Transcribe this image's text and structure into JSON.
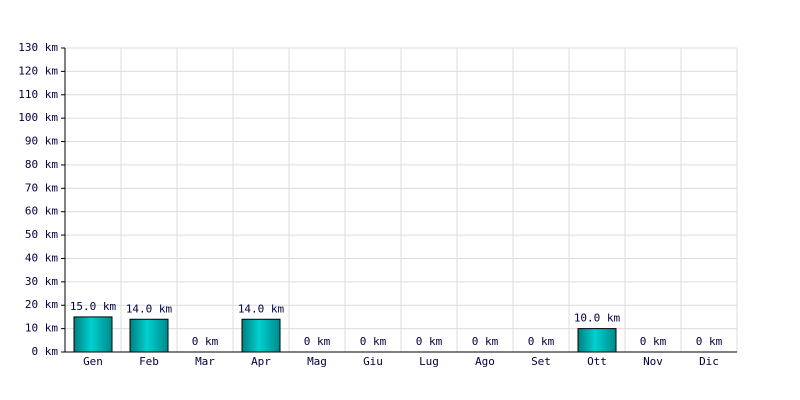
{
  "chart_data": {
    "type": "bar",
    "categories": [
      "Gen",
      "Feb",
      "Mar",
      "Apr",
      "Mag",
      "Giu",
      "Lug",
      "Ago",
      "Set",
      "Ott",
      "Nov",
      "Dic"
    ],
    "values": [
      15,
      14,
      0,
      14,
      0,
      0,
      0,
      0,
      0,
      10,
      0,
      0
    ],
    "value_labels": [
      "15.0 km",
      "14.0 km",
      "0 km",
      "14.0 km",
      "0 km",
      "0 km",
      "0 km",
      "0 km",
      "0 km",
      "10.0 km",
      "0 km",
      "0 km"
    ],
    "color": "#00d0d0",
    "ylim": [
      0,
      130
    ],
    "yticks": [
      {
        "value": 0,
        "label": "0 km"
      },
      {
        "value": 10,
        "label": "10 km"
      },
      {
        "value": 20,
        "label": "20 km"
      },
      {
        "value": 30,
        "label": "30 km"
      },
      {
        "value": 40,
        "label": "40 km"
      },
      {
        "value": 50,
        "label": "50 km"
      },
      {
        "value": 60,
        "label": "60 km"
      },
      {
        "value": 70,
        "label": "70 km"
      },
      {
        "value": 80,
        "label": "80 km"
      },
      {
        "value": 90,
        "label": "90 km"
      },
      {
        "value": 100,
        "label": "100 km"
      },
      {
        "value": 110,
        "label": "110 km"
      },
      {
        "value": 120,
        "label": "120 km"
      },
      {
        "value": 130,
        "label": "130 km"
      }
    ],
    "grid": true
  }
}
